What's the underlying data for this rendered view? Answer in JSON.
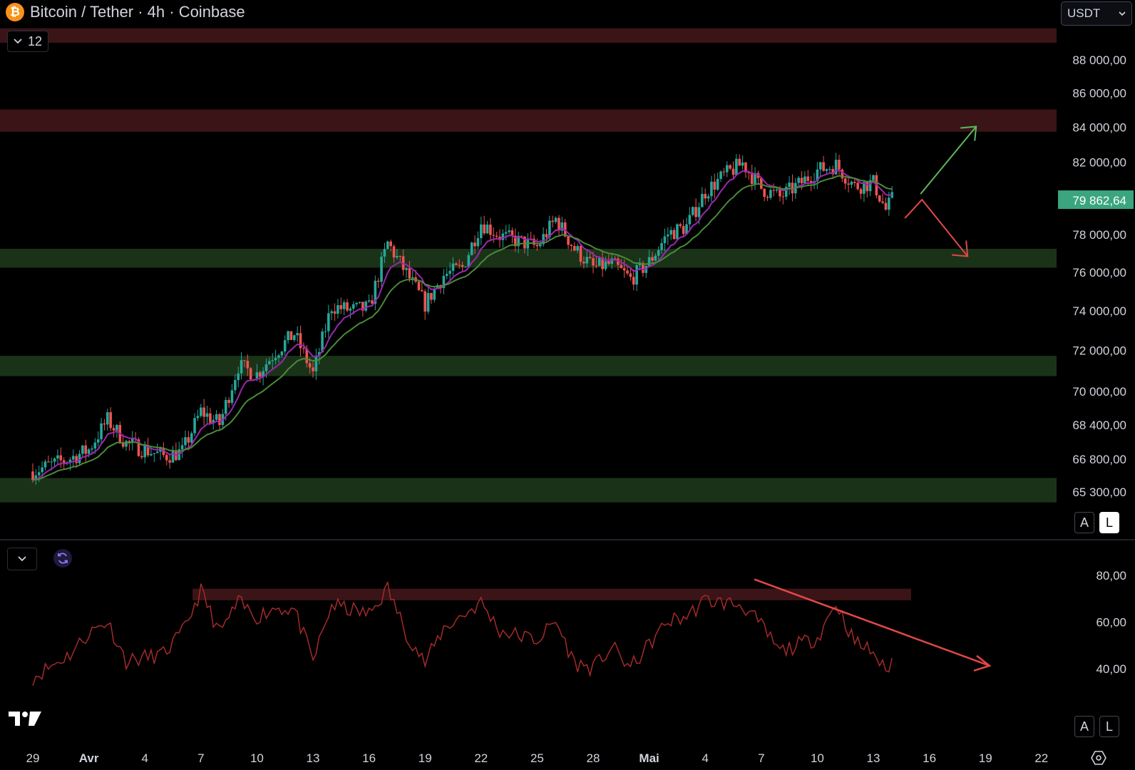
{
  "header": {
    "title": "Bitcoin / Tether · 4h · Coinbase",
    "logo_glyph": "₿",
    "indicator_count": "12"
  },
  "currency_select": {
    "value": "USDT"
  },
  "scale_buttons": {
    "auto": "A",
    "log": "L"
  },
  "colors": {
    "up": "#26a69a",
    "down": "#ef5350",
    "ema_fast": "#9c27b0",
    "ema_slow": "#4a8a3a",
    "support_zone": "#1a3318",
    "resistance_zone": "#3a1417",
    "rsi_line": "#a52a2a",
    "price_badge": "#3aa57f"
  },
  "chart_data": [
    {
      "type": "candlestick",
      "title": "Bitcoin / Tether · 4h · Coinbase",
      "x_ticks": [
        "29",
        "Avr",
        "4",
        "7",
        "10",
        "13",
        "16",
        "19",
        "22",
        "25",
        "28",
        "Mai",
        "4",
        "7",
        "10",
        "13",
        "16",
        "19",
        "22"
      ],
      "y_ticks": [
        "88 000,00",
        "86 000,00",
        "84 000,00",
        "82 000,00",
        "78 000,00",
        "76 000,00",
        "74 000,00",
        "72 000,00",
        "70 000,00",
        "68 400,00",
        "66 800,00",
        "65 300,00"
      ],
      "y_scale": "log",
      "last_price": 79862.64,
      "last_price_label": "79 862,64",
      "close_path_anchors": [
        [
          "29 mars",
          66200
        ],
        [
          "31 mars",
          66800
        ],
        [
          "1 avr",
          67200
        ],
        [
          "2 avr",
          68600
        ],
        [
          "3 avr",
          67500
        ],
        [
          "5 avr",
          66900
        ],
        [
          "6 avr",
          67100
        ],
        [
          "7 avr",
          69000
        ],
        [
          "8 avr",
          68400
        ],
        [
          "9 avr",
          71200
        ],
        [
          "10 avr",
          70800
        ],
        [
          "11 avr",
          71900
        ],
        [
          "12 avr",
          72800
        ],
        [
          "13 avr",
          70800
        ],
        [
          "14 avr",
          74200
        ],
        [
          "15 avr",
          74000
        ],
        [
          "16 avr",
          74100
        ],
        [
          "17 avr",
          77500
        ],
        [
          "18 avr",
          75900
        ],
        [
          "19 avr",
          74300
        ],
        [
          "20 avr",
          75800
        ],
        [
          "21 avr",
          76200
        ],
        [
          "22 avr",
          78600
        ],
        [
          "23 avr",
          77900
        ],
        [
          "25 avr",
          77300
        ],
        [
          "26 avr",
          78800
        ],
        [
          "27 avr",
          77200
        ],
        [
          "28 avr",
          76200
        ],
        [
          "29 avr",
          76400
        ],
        [
          "30 avr",
          75600
        ],
        [
          "1 mai",
          76500
        ],
        [
          "2 mai",
          78000
        ],
        [
          "3 mai",
          78400
        ],
        [
          "4 mai",
          80300
        ],
        [
          "5 mai",
          81200
        ],
        [
          "6 mai",
          81900
        ],
        [
          "7 mai",
          80500
        ],
        [
          "8 mai",
          80000
        ],
        [
          "9 mai",
          80700
        ],
        [
          "10 mai",
          81500
        ],
        [
          "11 mai",
          81800
        ],
        [
          "12 mai",
          80600
        ],
        [
          "13 mai",
          80800
        ],
        [
          "13 mai 16h",
          79300
        ],
        [
          "14 mai",
          79862.64
        ]
      ],
      "ema_fast": "EMA (short)",
      "ema_slow": "EMA (long)",
      "zones": [
        {
          "type": "resistance",
          "from": 89000,
          "to": 89900
        },
        {
          "type": "resistance",
          "from": 83700,
          "to": 85000
        },
        {
          "type": "support",
          "from": 76200,
          "to": 77200
        },
        {
          "type": "support",
          "from": 70700,
          "to": 71700
        },
        {
          "type": "support",
          "from": 64800,
          "to": 65900
        }
      ],
      "annotations": [
        {
          "type": "arrow",
          "color": "green",
          "direction": "up",
          "target": 84000
        },
        {
          "type": "arrow",
          "color": "red",
          "direction": "down",
          "target": 76800
        }
      ],
      "grid": false
    },
    {
      "type": "line",
      "name": "RSI",
      "y_ticks": [
        "80,00",
        "60,00",
        "40,00"
      ],
      "y_range": [
        20,
        85
      ],
      "anchors": [
        [
          "29 mars",
          36
        ],
        [
          "31 mars",
          46
        ],
        [
          "1 avr",
          55
        ],
        [
          "2 avr",
          60
        ],
        [
          "3 avr",
          43
        ],
        [
          "5 avr",
          46
        ],
        [
          "6 avr",
          55
        ],
        [
          "7 avr",
          73
        ],
        [
          "8 avr",
          55
        ],
        [
          "9 avr",
          68
        ],
        [
          "10 avr",
          62
        ],
        [
          "11 avr",
          66
        ],
        [
          "12 avr",
          65
        ],
        [
          "13 avr",
          43
        ],
        [
          "14 avr",
          67
        ],
        [
          "16 avr",
          63
        ],
        [
          "17 avr",
          74
        ],
        [
          "18 avr",
          55
        ],
        [
          "19 avr",
          42
        ],
        [
          "20 avr",
          57
        ],
        [
          "22 avr",
          68
        ],
        [
          "23 avr",
          56
        ],
        [
          "25 avr",
          52
        ],
        [
          "26 avr",
          60
        ],
        [
          "27 avr",
          42
        ],
        [
          "28 avr",
          40
        ],
        [
          "29 avr",
          49
        ],
        [
          "30 avr",
          40
        ],
        [
          "1 mai",
          50
        ],
        [
          "2 mai",
          60
        ],
        [
          "3 mai",
          62
        ],
        [
          "4 mai",
          69
        ],
        [
          "5 mai",
          68
        ],
        [
          "6 mai",
          67
        ],
        [
          "7 mai",
          58
        ],
        [
          "8 mai",
          47
        ],
        [
          "9 mai",
          50
        ],
        [
          "10 mai",
          53
        ],
        [
          "11 mai",
          68
        ],
        [
          "12 mai",
          51
        ],
        [
          "13 mai",
          47
        ],
        [
          "13 mai 16h",
          38
        ],
        [
          "14 mai",
          44
        ]
      ],
      "zones": [
        {
          "type": "overbought",
          "from": 69,
          "to": 74
        }
      ],
      "annotations": [
        {
          "type": "trendline-arrow",
          "color": "red",
          "from": 78,
          "to": 41
        }
      ]
    }
  ]
}
